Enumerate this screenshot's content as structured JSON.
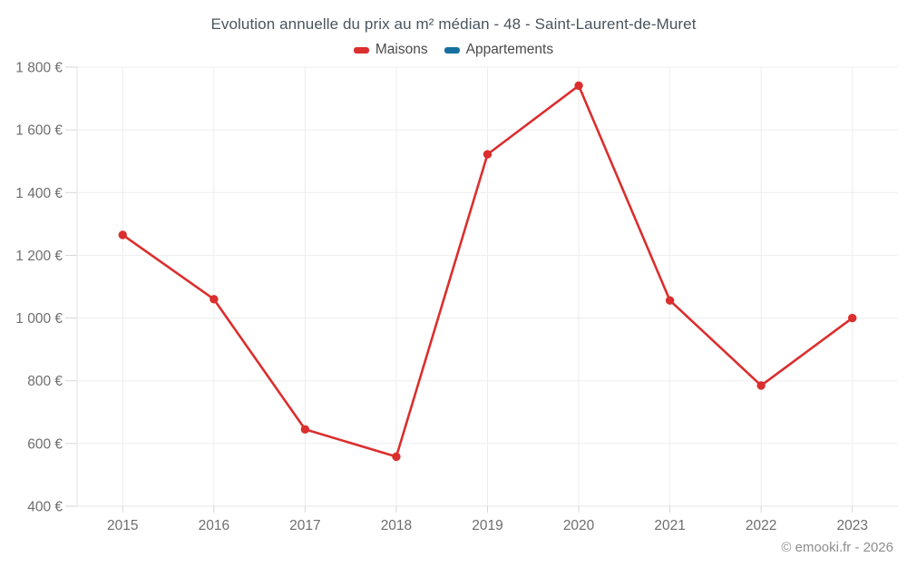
{
  "title": "Evolution annuelle du prix au m² médian - 48 - Saint-Laurent-de-Muret",
  "legend": [
    {
      "label": "Maisons",
      "color": "#db2e2e"
    },
    {
      "label": "Appartements",
      "color": "#16719f"
    }
  ],
  "footer": "© emooki.fr - 2026",
  "colors": {
    "maisons": "#db2e2e",
    "appartements": "#16719f",
    "grid": "#ededed",
    "axis": "#e3e3e3",
    "tick": "#d6d6d6",
    "tick_label": "#6e6e6e",
    "background": "#ffffff"
  },
  "chart_data": {
    "type": "line",
    "title": "Evolution annuelle du prix au m² médian - 48 - Saint-Laurent-de-Muret",
    "categories": [
      "2015",
      "2016",
      "2017",
      "2018",
      "2019",
      "2020",
      "2021",
      "2022",
      "2023"
    ],
    "series": [
      {
        "name": "Maisons",
        "color": "#db2e2e",
        "values": [
          1265,
          1060,
          645,
          558,
          1522,
          1741,
          1056,
          785,
          1000
        ]
      },
      {
        "name": "Appartements",
        "color": "#16719f",
        "values": []
      }
    ],
    "xlabel": "",
    "ylabel": "",
    "ylim": [
      400,
      1800
    ],
    "yticks": [
      {
        "value": 400,
        "label": "400 €"
      },
      {
        "value": 600,
        "label": "600 €"
      },
      {
        "value": 800,
        "label": "800 €"
      },
      {
        "value": 1000,
        "label": "1 000 €"
      },
      {
        "value": 1200,
        "label": "1 200 €"
      },
      {
        "value": 1400,
        "label": "1 400 €"
      },
      {
        "value": 1600,
        "label": "1 600 €"
      },
      {
        "value": 1800,
        "label": "1 800 €"
      }
    ],
    "grid": true,
    "legend_position": "top",
    "markers": true
  }
}
